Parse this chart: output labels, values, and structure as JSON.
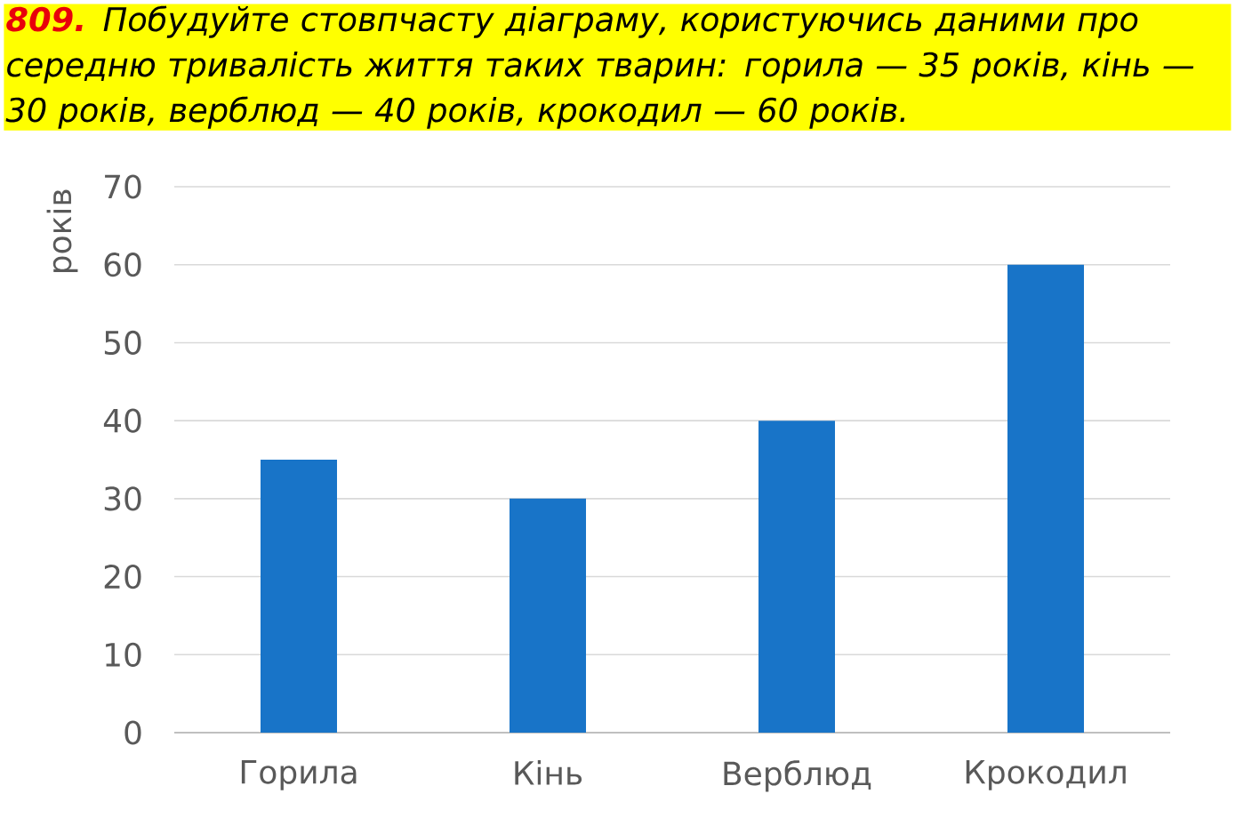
{
  "chart_data": {
    "type": "bar",
    "title": "**809.** Побудуйте стовпчасту діаграму, користуючись даними про середню тривалість життя таких тварин: горила — 35 років, кінь — 30 років, верблюд — 40 років, крокодил — 60 років.",
    "ylabel": "років",
    "categories": [
      "Горила",
      "Кінь",
      "Верблюд",
      "Крокодил"
    ],
    "values": [
      35,
      30,
      40,
      60
    ],
    "color": "#1874c8",
    "ylim": [
      0,
      70
    ],
    "yticks": [
      0,
      10,
      20,
      30,
      40,
      50,
      60,
      70
    ],
    "grid": "y"
  }
}
